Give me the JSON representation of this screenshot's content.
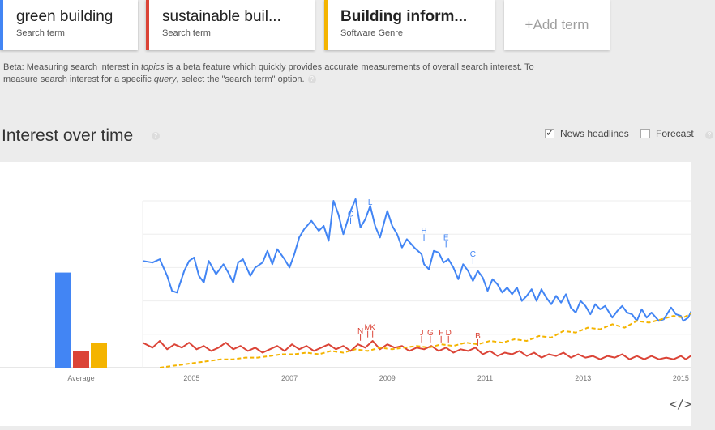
{
  "terms": [
    {
      "name": "green building",
      "type": "Search term",
      "color": "#4285f4",
      "bold": false
    },
    {
      "name": "sustainable buil...",
      "type": "Search term",
      "color": "#db4437",
      "bold": false
    },
    {
      "name": "Building inform...",
      "type": "Software Genre",
      "color": "#f4b400",
      "bold": true
    }
  ],
  "add_term_label": "+Add term",
  "beta_note": {
    "part1": "Beta: Measuring search interest in ",
    "em1": "topics",
    "part2": " is a beta feature which quickly provides accurate measurements of overall search interest. To measure search interest for a specific ",
    "em2": "query",
    "part3": ", select the \"search term\" option."
  },
  "section_title": "Interest over time",
  "options": {
    "news_headlines": {
      "label": "News headlines",
      "checked": true
    },
    "forecast": {
      "label": "Forecast",
      "checked": false
    }
  },
  "chart_data": {
    "type": "line",
    "x_start": 2004.0,
    "x_end": 2015.2,
    "xticks": [
      "2005",
      "2007",
      "2009",
      "2011",
      "2013",
      "2015"
    ],
    "ylim": [
      0,
      100
    ],
    "grid": true,
    "average_label": "Average",
    "averages": [
      {
        "name": "green building",
        "value": 57,
        "color": "#4285f4"
      },
      {
        "name": "sustainable buil...",
        "value": 10,
        "color": "#db4437"
      },
      {
        "name": "Building inform...",
        "value": 15,
        "color": "#f4b400"
      }
    ],
    "series": [
      {
        "name": "green building",
        "color": "#4285f4",
        "dashed": false,
        "points": [
          [
            2004.0,
            64
          ],
          [
            2004.2,
            63
          ],
          [
            2004.35,
            65
          ],
          [
            2004.5,
            55
          ],
          [
            2004.6,
            46
          ],
          [
            2004.7,
            45
          ],
          [
            2004.85,
            58
          ],
          [
            2004.95,
            64
          ],
          [
            2005.05,
            66
          ],
          [
            2005.15,
            55
          ],
          [
            2005.25,
            51
          ],
          [
            2005.35,
            64
          ],
          [
            2005.5,
            56
          ],
          [
            2005.65,
            62
          ],
          [
            2005.75,
            57
          ],
          [
            2005.85,
            51
          ],
          [
            2005.95,
            63
          ],
          [
            2006.05,
            65
          ],
          [
            2006.2,
            55
          ],
          [
            2006.3,
            60
          ],
          [
            2006.45,
            63
          ],
          [
            2006.55,
            70
          ],
          [
            2006.65,
            62
          ],
          [
            2006.75,
            71
          ],
          [
            2006.9,
            65
          ],
          [
            2007.0,
            60
          ],
          [
            2007.1,
            68
          ],
          [
            2007.2,
            78
          ],
          [
            2007.3,
            83
          ],
          [
            2007.45,
            88
          ],
          [
            2007.6,
            82
          ],
          [
            2007.7,
            85
          ],
          [
            2007.8,
            76
          ],
          [
            2007.9,
            100
          ],
          [
            2008.0,
            92
          ],
          [
            2008.1,
            80
          ],
          [
            2008.25,
            94
          ],
          [
            2008.35,
            101
          ],
          [
            2008.45,
            84
          ],
          [
            2008.55,
            89
          ],
          [
            2008.65,
            97
          ],
          [
            2008.75,
            85
          ],
          [
            2008.85,
            78
          ],
          [
            2009.0,
            94
          ],
          [
            2009.1,
            85
          ],
          [
            2009.2,
            80
          ],
          [
            2009.3,
            72
          ],
          [
            2009.4,
            77
          ],
          [
            2009.55,
            72
          ],
          [
            2009.7,
            68
          ],
          [
            2009.75,
            62
          ],
          [
            2009.85,
            59
          ],
          [
            2009.95,
            70
          ],
          [
            2010.05,
            69
          ],
          [
            2010.15,
            63
          ],
          [
            2010.25,
            65
          ],
          [
            2010.35,
            60
          ],
          [
            2010.45,
            53
          ],
          [
            2010.55,
            62
          ],
          [
            2010.65,
            58
          ],
          [
            2010.75,
            52
          ],
          [
            2010.85,
            58
          ],
          [
            2010.95,
            54
          ],
          [
            2011.05,
            46
          ],
          [
            2011.15,
            53
          ],
          [
            2011.25,
            50
          ],
          [
            2011.35,
            45
          ],
          [
            2011.45,
            48
          ],
          [
            2011.55,
            44
          ],
          [
            2011.65,
            48
          ],
          [
            2011.75,
            40
          ],
          [
            2011.85,
            43
          ],
          [
            2011.95,
            47
          ],
          [
            2012.05,
            40
          ],
          [
            2012.15,
            47
          ],
          [
            2012.25,
            42
          ],
          [
            2012.35,
            38
          ],
          [
            2012.45,
            43
          ],
          [
            2012.55,
            39
          ],
          [
            2012.65,
            44
          ],
          [
            2012.75,
            36
          ],
          [
            2012.85,
            33
          ],
          [
            2012.95,
            40
          ],
          [
            2013.05,
            37
          ],
          [
            2013.15,
            32
          ],
          [
            2013.25,
            38
          ],
          [
            2013.35,
            35
          ],
          [
            2013.45,
            37
          ],
          [
            2013.6,
            30
          ],
          [
            2013.7,
            34
          ],
          [
            2013.8,
            37
          ],
          [
            2013.9,
            33
          ],
          [
            2014.0,
            32
          ],
          [
            2014.1,
            28
          ],
          [
            2014.2,
            35
          ],
          [
            2014.3,
            30
          ],
          [
            2014.4,
            33
          ],
          [
            2014.55,
            28
          ],
          [
            2014.65,
            29
          ],
          [
            2014.8,
            36
          ],
          [
            2014.9,
            32
          ],
          [
            2015.0,
            31
          ],
          [
            2015.05,
            28
          ],
          [
            2015.15,
            30
          ],
          [
            2015.25,
            36
          ]
        ]
      },
      {
        "name": "sustainable buil...",
        "color": "#db4437",
        "dashed": false,
        "points": [
          [
            2004.0,
            15
          ],
          [
            2004.2,
            12
          ],
          [
            2004.35,
            16
          ],
          [
            2004.5,
            11
          ],
          [
            2004.65,
            14
          ],
          [
            2004.8,
            12
          ],
          [
            2004.95,
            15
          ],
          [
            2005.1,
            11
          ],
          [
            2005.25,
            13
          ],
          [
            2005.4,
            10
          ],
          [
            2005.55,
            12
          ],
          [
            2005.7,
            15
          ],
          [
            2005.85,
            11
          ],
          [
            2006.0,
            13
          ],
          [
            2006.15,
            10
          ],
          [
            2006.3,
            12
          ],
          [
            2006.45,
            9
          ],
          [
            2006.6,
            11
          ],
          [
            2006.75,
            13
          ],
          [
            2006.9,
            10
          ],
          [
            2007.05,
            14
          ],
          [
            2007.2,
            11
          ],
          [
            2007.35,
            13
          ],
          [
            2007.5,
            10
          ],
          [
            2007.65,
            12
          ],
          [
            2007.8,
            14
          ],
          [
            2007.95,
            11
          ],
          [
            2008.1,
            13
          ],
          [
            2008.25,
            10
          ],
          [
            2008.4,
            14
          ],
          [
            2008.55,
            12
          ],
          [
            2008.7,
            16
          ],
          [
            2008.85,
            11
          ],
          [
            2009.0,
            14
          ],
          [
            2009.15,
            12
          ],
          [
            2009.3,
            13
          ],
          [
            2009.45,
            10
          ],
          [
            2009.6,
            12
          ],
          [
            2009.75,
            11
          ],
          [
            2009.9,
            13
          ],
          [
            2010.05,
            10
          ],
          [
            2010.2,
            12
          ],
          [
            2010.35,
            9
          ],
          [
            2010.5,
            11
          ],
          [
            2010.65,
            10
          ],
          [
            2010.8,
            12
          ],
          [
            2010.95,
            8
          ],
          [
            2011.1,
            10
          ],
          [
            2011.25,
            7
          ],
          [
            2011.4,
            9
          ],
          [
            2011.55,
            8
          ],
          [
            2011.7,
            10
          ],
          [
            2011.85,
            7
          ],
          [
            2012.0,
            9
          ],
          [
            2012.15,
            6
          ],
          [
            2012.3,
            8
          ],
          [
            2012.45,
            7
          ],
          [
            2012.6,
            9
          ],
          [
            2012.75,
            6
          ],
          [
            2012.9,
            8
          ],
          [
            2013.05,
            6
          ],
          [
            2013.2,
            7
          ],
          [
            2013.35,
            5
          ],
          [
            2013.5,
            7
          ],
          [
            2013.65,
            6
          ],
          [
            2013.8,
            8
          ],
          [
            2013.95,
            5
          ],
          [
            2014.1,
            7
          ],
          [
            2014.25,
            5
          ],
          [
            2014.4,
            7
          ],
          [
            2014.55,
            5
          ],
          [
            2014.7,
            6
          ],
          [
            2014.85,
            5
          ],
          [
            2015.0,
            7
          ],
          [
            2015.1,
            5
          ],
          [
            2015.25,
            8
          ]
        ]
      },
      {
        "name": "Building inform...",
        "color": "#f4b400",
        "dashed": true,
        "points": [
          [
            2004.35,
            0
          ],
          [
            2004.6,
            1
          ],
          [
            2004.85,
            2
          ],
          [
            2005.1,
            3
          ],
          [
            2005.35,
            4
          ],
          [
            2005.6,
            5
          ],
          [
            2005.85,
            5
          ],
          [
            2006.1,
            6
          ],
          [
            2006.35,
            6
          ],
          [
            2006.6,
            7
          ],
          [
            2006.85,
            8
          ],
          [
            2007.1,
            8
          ],
          [
            2007.35,
            9
          ],
          [
            2007.6,
            8
          ],
          [
            2007.85,
            10
          ],
          [
            2008.1,
            9
          ],
          [
            2008.35,
            11
          ],
          [
            2008.6,
            10
          ],
          [
            2008.85,
            12
          ],
          [
            2009.1,
            11
          ],
          [
            2009.35,
            12
          ],
          [
            2009.6,
            13
          ],
          [
            2009.85,
            12
          ],
          [
            2010.1,
            14
          ],
          [
            2010.35,
            13
          ],
          [
            2010.6,
            15
          ],
          [
            2010.85,
            14
          ],
          [
            2011.1,
            16
          ],
          [
            2011.35,
            15
          ],
          [
            2011.6,
            17
          ],
          [
            2011.85,
            16
          ],
          [
            2012.1,
            19
          ],
          [
            2012.35,
            18
          ],
          [
            2012.6,
            22
          ],
          [
            2012.85,
            21
          ],
          [
            2013.1,
            24
          ],
          [
            2013.35,
            23
          ],
          [
            2013.6,
            26
          ],
          [
            2013.85,
            24
          ],
          [
            2014.1,
            28
          ],
          [
            2014.35,
            27
          ],
          [
            2014.6,
            29
          ],
          [
            2014.85,
            31
          ],
          [
            2015.05,
            30
          ],
          [
            2015.25,
            33
          ]
        ]
      }
    ],
    "annotations": [
      {
        "label": "C",
        "x": 2008.25,
        "y": 90,
        "color": "#4285f4"
      },
      {
        "label": "L",
        "x": 2008.65,
        "y": 97,
        "color": "#4285f4"
      },
      {
        "label": "H",
        "x": 2009.75,
        "y": 80,
        "color": "#4285f4"
      },
      {
        "label": "E",
        "x": 2010.2,
        "y": 76,
        "color": "#4285f4"
      },
      {
        "label": "C",
        "x": 2010.75,
        "y": 66,
        "color": "#4285f4"
      },
      {
        "label": "N",
        "x": 2008.45,
        "y": 20,
        "color": "#db4437"
      },
      {
        "label": "M",
        "x": 2008.6,
        "y": 22,
        "color": "#db4437"
      },
      {
        "label": "K",
        "x": 2008.7,
        "y": 22,
        "color": "#db4437"
      },
      {
        "label": "J",
        "x": 2009.7,
        "y": 19,
        "color": "#db4437"
      },
      {
        "label": "G",
        "x": 2009.88,
        "y": 19,
        "color": "#db4437"
      },
      {
        "label": "F",
        "x": 2010.1,
        "y": 19,
        "color": "#db4437"
      },
      {
        "label": "D",
        "x": 2010.25,
        "y": 19,
        "color": "#db4437"
      },
      {
        "label": "B",
        "x": 2010.85,
        "y": 17,
        "color": "#db4437"
      }
    ]
  }
}
